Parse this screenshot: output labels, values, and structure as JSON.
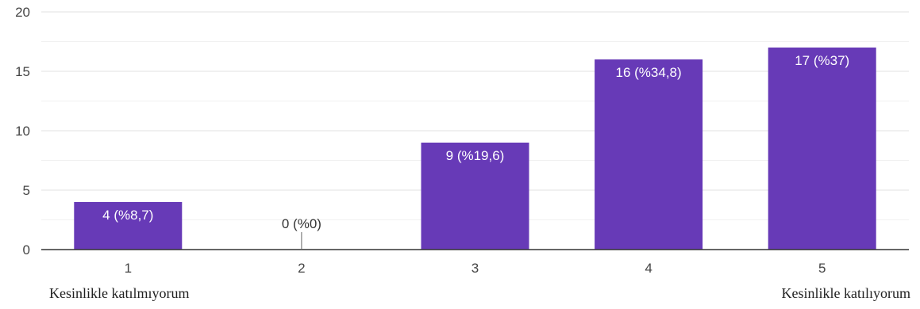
{
  "chart_data": {
    "type": "bar",
    "categories": [
      "1",
      "2",
      "3",
      "4",
      "5"
    ],
    "values": [
      4,
      0,
      9,
      16,
      17
    ],
    "data_labels": [
      "4 (%8,7)",
      "0 (%0)",
      "9 (%19,6)",
      "16 (%34,8)",
      "17 (%37)"
    ],
    "y_ticks": [
      "0",
      "5",
      "10",
      "15",
      "20"
    ],
    "ylim": [
      0,
      20
    ],
    "grid": true,
    "bar_color": "#673ab7",
    "scale_labels": {
      "low": "Kesinlikle katılmıyorum",
      "high": "Kesinlikle katılıyorum"
    }
  }
}
